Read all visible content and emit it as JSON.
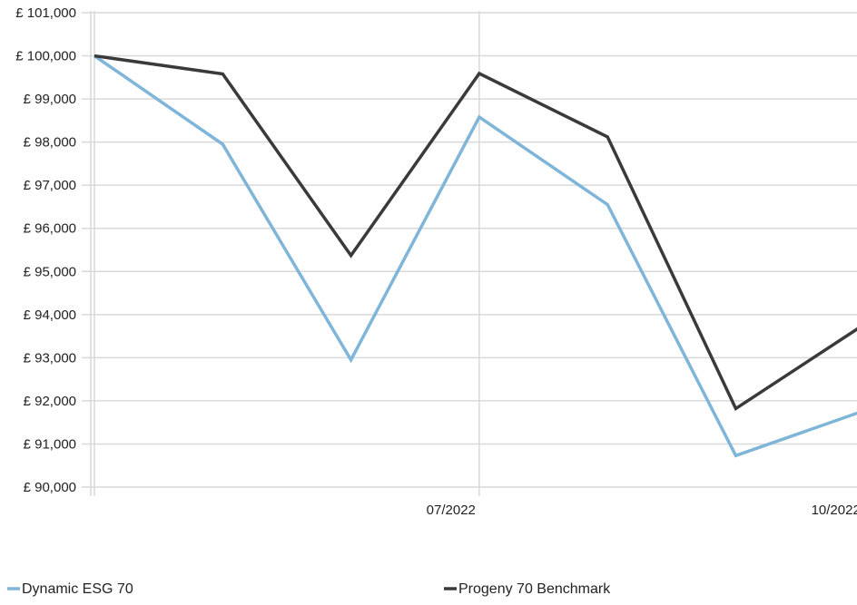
{
  "chart_data": {
    "type": "line",
    "x": [
      "04/2022",
      "05/2022",
      "06/2022",
      "07/2022",
      "08/2022",
      "09/2022",
      "10/2022"
    ],
    "x_tick_labels": [
      "07/2022",
      "10/2022"
    ],
    "y_tick_labels": [
      "£ 101,000",
      "£ 100,000",
      "£ 99,000",
      "£ 98,000",
      "£ 97,000",
      "£ 96,000",
      "£ 95,000",
      "£ 94,000",
      "£ 93,000",
      "£ 92,000",
      "£ 91,000",
      "£ 90,000"
    ],
    "ylim": [
      90000,
      101000
    ],
    "grid": true,
    "legend_position": "bottom",
    "series": [
      {
        "name": "Dynamic ESG 70",
        "color": "#7fb5d8",
        "values": [
          100000,
          97950,
          92950,
          98580,
          96550,
          90730,
          91770
        ]
      },
      {
        "name": "Progeny 70 Benchmark",
        "color": "#3a3a3a",
        "values": [
          100000,
          99580,
          95370,
          99590,
          98120,
          91820,
          93770
        ]
      }
    ]
  }
}
